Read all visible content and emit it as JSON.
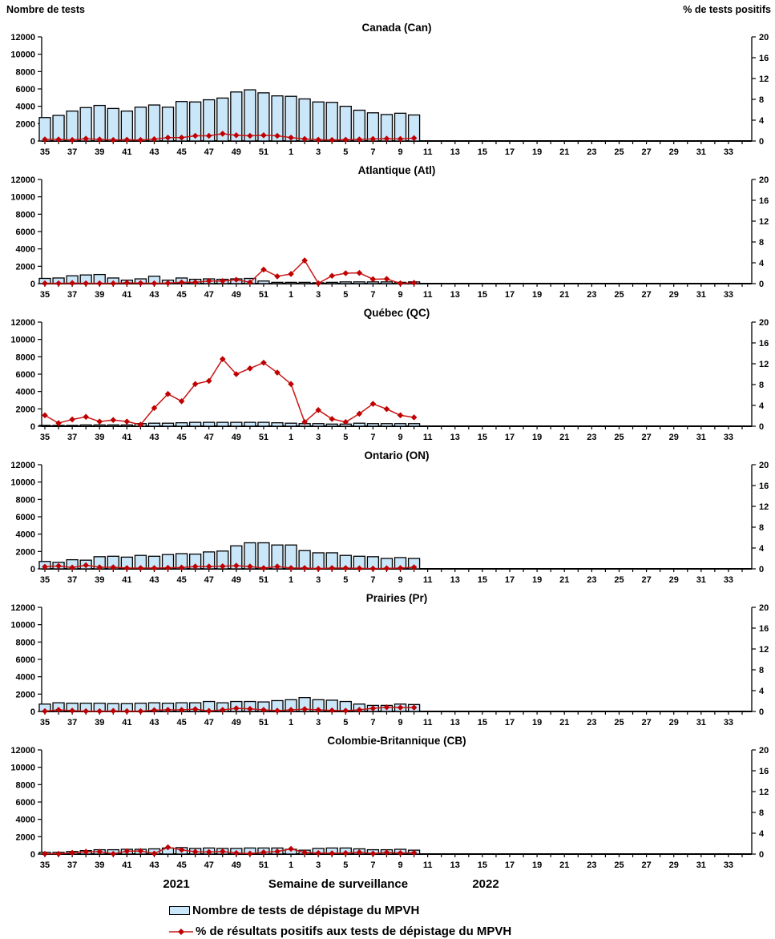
{
  "header": {
    "left": "Nombre de tests",
    "right": "% de tests positifs"
  },
  "footer": {
    "year_left": "2021",
    "xlabel": "Semaine de surveillance",
    "year_right": "2022"
  },
  "legend": {
    "bars_label": "Nombre de tests de dépistage du MPVH",
    "line_label": "% de résultats positifs aux tests de dépistage du MPVH"
  },
  "colors": {
    "bar_fill": "#CAE6F9",
    "bar_stroke": "#000000",
    "line": "#C81414",
    "marker": "#C00000"
  },
  "chart_data": {
    "type": "bar+line",
    "x_axis_label": "Semaine de surveillance",
    "x_categories": [
      35,
      36,
      37,
      38,
      39,
      40,
      41,
      42,
      43,
      44,
      45,
      46,
      47,
      48,
      49,
      50,
      51,
      52,
      1,
      2,
      3,
      4,
      5,
      6,
      7,
      8,
      9,
      10,
      11,
      12,
      13,
      14,
      15,
      16,
      17,
      18,
      19,
      20,
      21,
      22,
      23,
      24,
      25,
      26,
      27,
      28,
      29,
      30,
      31,
      32,
      33,
      34
    ],
    "x_tick_label_every_odd_week": true,
    "year_split": {
      "left_year": "2021",
      "right_year": "2022",
      "weeks_2021": 18
    },
    "left_axis": {
      "label": "Nombre de tests",
      "ylim": [
        0,
        12000
      ],
      "ticks": [
        0,
        2000,
        4000,
        6000,
        8000,
        10000,
        12000
      ]
    },
    "right_axis": {
      "label": "% de tests positifs",
      "ylim": [
        0,
        20
      ],
      "ticks": [
        0,
        4,
        8,
        12,
        16,
        20
      ]
    },
    "weeks_with_data": 28,
    "panels": [
      {
        "title": "Canada (Can)",
        "tests": [
          2700,
          2950,
          3450,
          3850,
          4100,
          3750,
          3450,
          3900,
          4150,
          3900,
          4550,
          4500,
          4750,
          4950,
          5650,
          5900,
          5550,
          5200,
          5150,
          4850,
          4500,
          4450,
          4000,
          3550,
          3250,
          3050,
          3200,
          3000
        ],
        "pct_positifs": [
          0.3,
          0.3,
          0.2,
          0.45,
          0.3,
          0.2,
          0.25,
          0.2,
          0.35,
          0.65,
          0.65,
          1.0,
          1.0,
          1.4,
          1.1,
          1.0,
          1.1,
          1.0,
          0.65,
          0.4,
          0.25,
          0.2,
          0.25,
          0.3,
          0.4,
          0.45,
          0.4,
          0.55
        ]
      },
      {
        "title": "Atlantique (Atl)",
        "tests": [
          600,
          650,
          900,
          1000,
          1050,
          650,
          400,
          550,
          850,
          400,
          650,
          500,
          550,
          500,
          550,
          600,
          300,
          150,
          150,
          150,
          100,
          150,
          200,
          200,
          200,
          200,
          150,
          200
        ],
        "pct_positifs": [
          0.05,
          0.05,
          0.1,
          0.05,
          0.05,
          0.05,
          0.15,
          0.1,
          0.05,
          0.1,
          0.25,
          0.25,
          0.5,
          0.5,
          0.75,
          0.25,
          2.7,
          1.4,
          1.85,
          4.45,
          0.05,
          1.5,
          2.0,
          2.05,
          0.85,
          0.9,
          0.05,
          0.15
        ]
      },
      {
        "title": "Québec (QC)",
        "tests": [
          100,
          100,
          100,
          150,
          150,
          150,
          150,
          300,
          350,
          350,
          400,
          450,
          450,
          450,
          450,
          450,
          450,
          400,
          350,
          300,
          300,
          250,
          250,
          350,
          300,
          300,
          300,
          300
        ],
        "pct_positifs": [
          2.1,
          0.6,
          1.3,
          1.8,
          0.9,
          1.2,
          0.9,
          0.3,
          3.5,
          6.2,
          4.8,
          8.1,
          8.7,
          12.9,
          10.0,
          11.1,
          12.2,
          10.3,
          8.1,
          0.8,
          3.1,
          1.4,
          0.8,
          2.4,
          4.3,
          3.3,
          2.1,
          1.7
        ]
      },
      {
        "title": "Ontario (ON)",
        "tests": [
          850,
          750,
          1050,
          1000,
          1400,
          1450,
          1350,
          1550,
          1450,
          1650,
          1750,
          1700,
          1950,
          2050,
          2650,
          3000,
          3000,
          2750,
          2750,
          2100,
          1850,
          1850,
          1550,
          1450,
          1400,
          1200,
          1300,
          1200
        ],
        "pct_positifs": [
          0.4,
          0.55,
          0.25,
          0.7,
          0.3,
          0.3,
          0.15,
          0.15,
          0.15,
          0.2,
          0.25,
          0.45,
          0.45,
          0.5,
          0.6,
          0.45,
          0.15,
          0.45,
          0.15,
          0.15,
          0.05,
          0.15,
          0.15,
          0.1,
          0.05,
          0.1,
          0.15,
          0.3
        ]
      },
      {
        "title": "Prairies (Pr)",
        "tests": [
          850,
          1000,
          950,
          950,
          950,
          900,
          900,
          950,
          1000,
          950,
          1000,
          1000,
          1150,
          1000,
          1150,
          1150,
          1100,
          1250,
          1350,
          1600,
          1350,
          1300,
          1150,
          850,
          700,
          700,
          850,
          800
        ],
        "pct_positifs": [
          0.05,
          0.3,
          0.15,
          0.05,
          0.05,
          0.1,
          0.05,
          0.05,
          0.25,
          0.3,
          0.3,
          0.45,
          0.1,
          0.3,
          0.6,
          0.5,
          0.3,
          0.15,
          0.3,
          0.45,
          0.3,
          0.2,
          0.15,
          0.3,
          0.6,
          0.8,
          0.75,
          0.75
        ]
      },
      {
        "title": "Colombie-Britannique (CB)",
        "tests": [
          200,
          200,
          300,
          400,
          500,
          500,
          550,
          550,
          600,
          700,
          750,
          650,
          700,
          650,
          650,
          700,
          700,
          700,
          550,
          450,
          650,
          700,
          700,
          600,
          500,
          500,
          550,
          450
        ],
        "pct_positifs": [
          0.05,
          0.05,
          0.25,
          0.45,
          0.45,
          0.05,
          0.55,
          0.6,
          0.1,
          1.3,
          0.8,
          0.45,
          0.4,
          0.5,
          0.2,
          0.1,
          0.35,
          0.5,
          1.0,
          0.3,
          0.2,
          0.15,
          0.2,
          0.35,
          0.1,
          0.3,
          0.2,
          0.25
        ]
      }
    ]
  }
}
